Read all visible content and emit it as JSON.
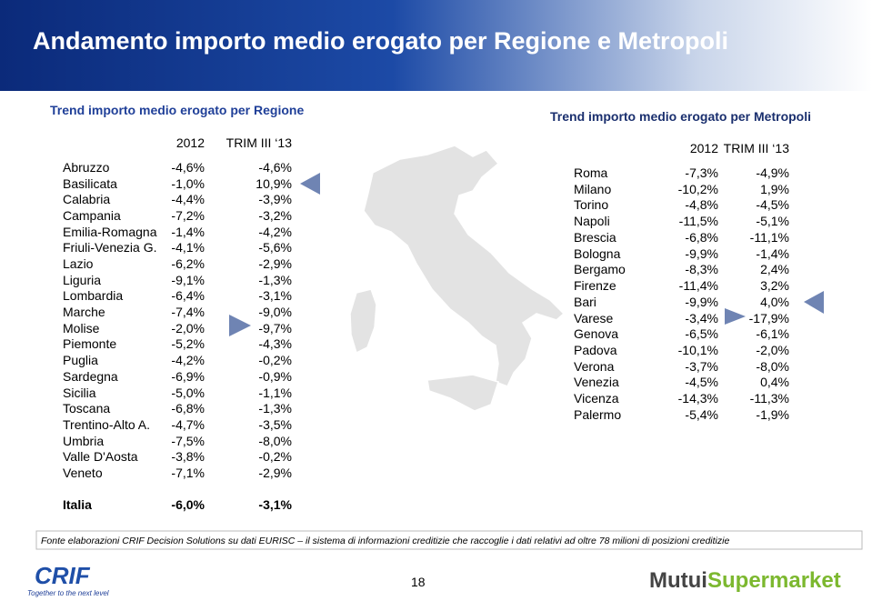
{
  "header": {
    "title": "Andamento importo medio erogato per Regione e Metropoli"
  },
  "left": {
    "title": "Trend importo medio erogato per Regione",
    "columns": [
      "2012",
      "TRIM III ‘13"
    ],
    "rows": [
      [
        "Abruzzo",
        "-4,6%",
        "-4,6%"
      ],
      [
        "Basilicata",
        "-1,0%",
        "10,9%"
      ],
      [
        "Calabria",
        "-4,4%",
        "-3,9%"
      ],
      [
        "Campania",
        "-7,2%",
        "-3,2%"
      ],
      [
        "Emilia-Romagna",
        "-1,4%",
        "-4,2%"
      ],
      [
        "Friuli-Venezia G.",
        "-4,1%",
        "-5,6%"
      ],
      [
        "Lazio",
        "-6,2%",
        "-2,9%"
      ],
      [
        "Liguria",
        "-9,1%",
        "-1,3%"
      ],
      [
        "Lombardia",
        "-6,4%",
        "-3,1%"
      ],
      [
        "Marche",
        "-7,4%",
        "-9,0%"
      ],
      [
        "Molise",
        "-2,0%",
        "-9,7%"
      ],
      [
        "Piemonte",
        "-5,2%",
        "-4,3%"
      ],
      [
        "Puglia",
        "-4,2%",
        "-0,2%"
      ],
      [
        "Sardegna",
        "-6,9%",
        "-0,9%"
      ],
      [
        "Sicilia",
        "-5,0%",
        "-1,1%"
      ],
      [
        "Toscana",
        "-6,8%",
        "-1,3%"
      ],
      [
        "Trentino-Alto A.",
        "-4,7%",
        "-3,5%"
      ],
      [
        "Umbria",
        "-7,5%",
        "-8,0%"
      ],
      [
        "Valle D'Aosta",
        "-3,8%",
        "-0,2%"
      ],
      [
        "Veneto",
        "-7,1%",
        "-2,9%"
      ]
    ],
    "total": [
      "Italia",
      "-6,0%",
      "-3,1%"
    ]
  },
  "right": {
    "title": "Trend importo medio erogato per Metropoli",
    "columns": [
      "2012",
      "TRIM III ‘13"
    ],
    "rows": [
      [
        "Roma",
        "-7,3%",
        "-4,9%"
      ],
      [
        "Milano",
        "-10,2%",
        "1,9%"
      ],
      [
        "Torino",
        "-4,8%",
        "-4,5%"
      ],
      [
        "Napoli",
        "-11,5%",
        "-5,1%"
      ],
      [
        "Brescia",
        "-6,8%",
        "-11,1%"
      ],
      [
        "Bologna",
        "-9,9%",
        "-1,4%"
      ],
      [
        "Bergamo",
        "-8,3%",
        "2,4%"
      ],
      [
        "Firenze",
        "-11,4%",
        "3,2%"
      ],
      [
        "Bari",
        "-9,9%",
        "4,0%"
      ],
      [
        "Varese",
        "-3,4%",
        "-17,9%"
      ],
      [
        "Genova",
        "-6,5%",
        "-6,1%"
      ],
      [
        "Padova",
        "-10,1%",
        "-2,0%"
      ],
      [
        "Verona",
        "-3,7%",
        "-8,0%"
      ],
      [
        "Venezia",
        "-4,5%",
        "0,4%"
      ],
      [
        "Vicenza",
        "-14,3%",
        "-11,3%"
      ],
      [
        "Palermo",
        "-5,4%",
        "-1,9%"
      ]
    ]
  },
  "footer": {
    "source": "Fonte elaborazioni CRIF Decision Solutions su dati EURISC – il sistema di informazioni creditizie che raccoglie i dati relativi ad oltre 78 milioni di posizioni creditizie",
    "page": "18",
    "logo_left": "CRIF",
    "tagline": "Together to the next level",
    "logo_right": [
      "Mutui",
      "Supermarket"
    ]
  }
}
